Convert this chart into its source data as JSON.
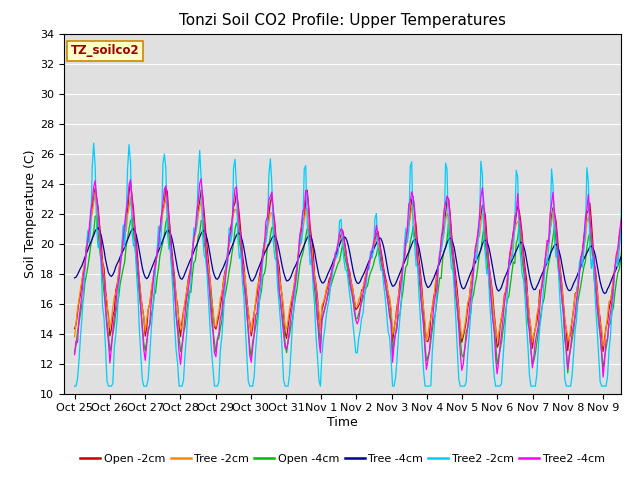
{
  "title": "Tonzi Soil CO2 Profile: Upper Temperatures",
  "xlabel": "Time",
  "ylabel": "Soil Temperature (C)",
  "ylim": [
    10,
    34
  ],
  "yticks": [
    10,
    12,
    14,
    16,
    18,
    20,
    22,
    24,
    26,
    28,
    30,
    32,
    34
  ],
  "plot_bg": "#e0e0e0",
  "fig_bg": "#ffffff",
  "legend_label": "TZ_soilco2",
  "series_names": [
    "Open -2cm",
    "Tree -2cm",
    "Open -4cm",
    "Tree -4cm",
    "Tree2 -2cm",
    "Tree2 -4cm"
  ],
  "series_colors": [
    "#cc0000",
    "#ff8800",
    "#00bb00",
    "#000099",
    "#00ccff",
    "#ff00ff"
  ],
  "xtick_labels": [
    "Oct 25",
    "Oct 26",
    "Oct 27",
    "Oct 28",
    "Oct 29",
    "Oct 30",
    "Oct 31",
    "Nov 1",
    "Nov 2",
    "Nov 3",
    "Nov 4",
    "Nov 5",
    "Nov 6",
    "Nov 7",
    "Nov 8",
    "Nov 9"
  ],
  "title_fontsize": 11,
  "axis_label_fontsize": 9,
  "tick_fontsize": 8,
  "legend_fontsize": 8
}
